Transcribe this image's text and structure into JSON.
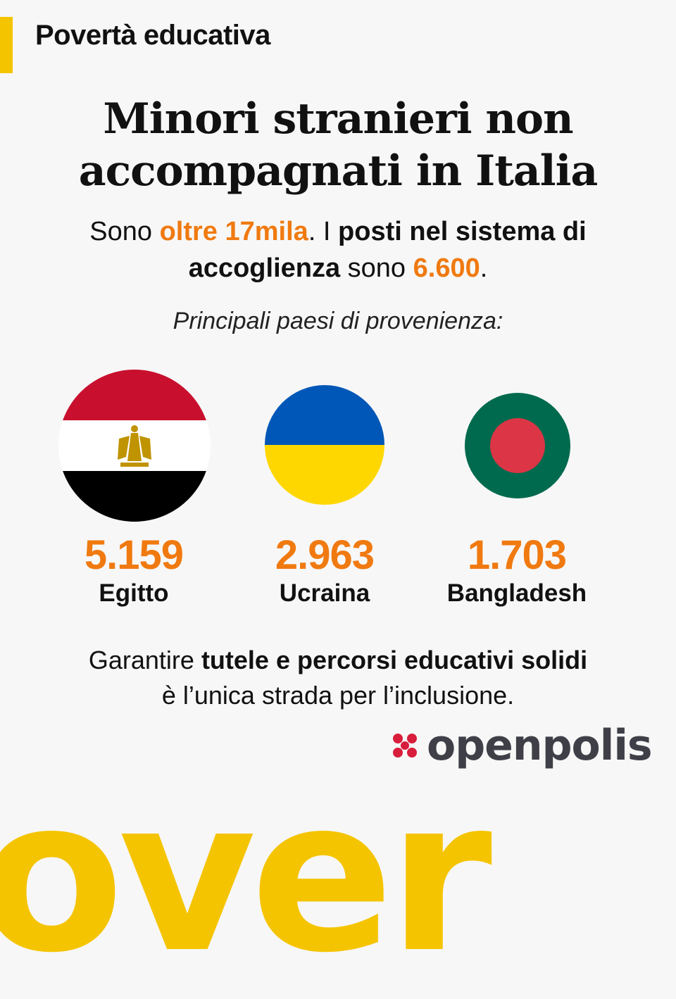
{
  "header": {
    "section": "Povertà educativa"
  },
  "headline": {
    "line1": "Minori stranieri non",
    "line2": "accompagnati in Italia"
  },
  "lead": {
    "t1": "Sono ",
    "highlight1": "oltre 17mila",
    "t2": ". I ",
    "bold1": "posti nel sistema di accoglienza",
    "t3": " sono ",
    "highlight2": "6.600",
    "t4": "."
  },
  "subhead": "Principali paesi di provenienza:",
  "countries": [
    {
      "value": "5.159",
      "name": "Egitto",
      "flag": "egypt-flag"
    },
    {
      "value": "2.963",
      "name": "Ucraina",
      "flag": "ukraine-flag"
    },
    {
      "value": "1.703",
      "name": "Bangladesh",
      "flag": "bangladesh-flag"
    }
  ],
  "closing": {
    "t1": "Garantire ",
    "bold": "tutele e percorsi educativi solidi",
    "t2": "è l’unica strada per l’inclusione."
  },
  "brand": {
    "name": "openpolis",
    "icon": "openpolis-logo-icon"
  },
  "background_word": "over",
  "colors": {
    "accent_yellow": "#f5c400",
    "highlight_orange": "#f07a10",
    "brand_red": "#d81e3c",
    "brand_gray": "#3f3f48"
  }
}
